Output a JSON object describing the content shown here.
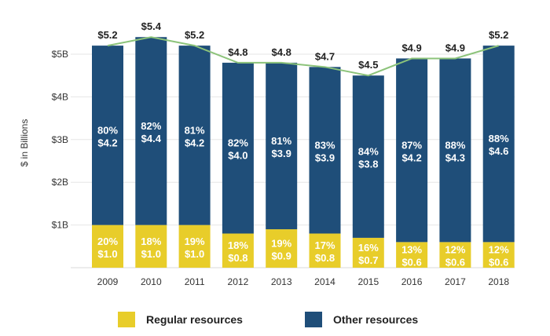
{
  "chart_data": {
    "type": "bar",
    "stacked": true,
    "categories": [
      "2009",
      "2010",
      "2011",
      "2012",
      "2013",
      "2014",
      "2015",
      "2016",
      "2017",
      "2018"
    ],
    "ylabel": "$ in Billions",
    "ylim": [
      0,
      5.4
    ],
    "yticks": [
      {
        "value": 1,
        "label": "$1B"
      },
      {
        "value": 2,
        "label": "$2B"
      },
      {
        "value": 3,
        "label": "$3B"
      },
      {
        "value": 4,
        "label": "$4B"
      },
      {
        "value": 5,
        "label": "$5B"
      }
    ],
    "totals": [
      5.2,
      5.4,
      5.2,
      4.8,
      4.8,
      4.7,
      4.5,
      4.9,
      4.9,
      5.2
    ],
    "total_labels": [
      "$5.2",
      "$5.4",
      "$5.2",
      "$4.8",
      "$4.8",
      "$4.7",
      "$4.5",
      "$4.9",
      "$4.9",
      "$5.2"
    ],
    "series": [
      {
        "name": "Regular resources",
        "color": "#e8cd2a",
        "values": [
          1.0,
          1.0,
          1.0,
          0.8,
          0.9,
          0.8,
          0.7,
          0.6,
          0.6,
          0.6
        ],
        "percent_labels": [
          "20%",
          "18%",
          "19%",
          "18%",
          "19%",
          "17%",
          "16%",
          "13%",
          "12%",
          "12%"
        ],
        "value_labels": [
          "$1.0",
          "$1.0",
          "$1.0",
          "$0.8",
          "$0.9",
          "$0.8",
          "$0.7",
          "$0.6",
          "$0.6",
          "$0.6"
        ]
      },
      {
        "name": "Other resources",
        "color": "#1f4e79",
        "values": [
          4.2,
          4.4,
          4.2,
          4.0,
          3.9,
          3.9,
          3.8,
          4.2,
          4.3,
          4.6
        ],
        "percent_labels": [
          "80%",
          "82%",
          "81%",
          "82%",
          "81%",
          "83%",
          "84%",
          "87%",
          "88%",
          "88%"
        ],
        "value_labels": [
          "$4.2",
          "$4.4",
          "$4.2",
          "$4.0",
          "$3.9",
          "$3.9",
          "$3.8",
          "$4.2",
          "$4.3",
          "$4.6"
        ]
      }
    ],
    "total_line_color": "#8cc37a",
    "legend": {
      "position": "bottom"
    },
    "grid": true
  }
}
